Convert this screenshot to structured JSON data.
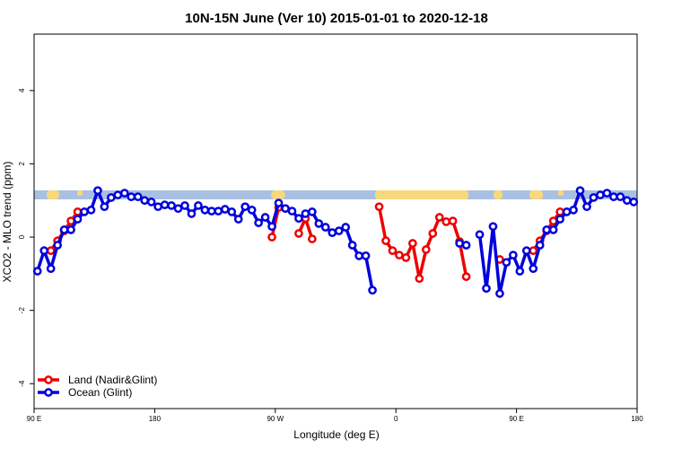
{
  "chart_data": {
    "type": "line",
    "title": "10N-15N June (Ver 10)   2015-01-01 to 2020-12-18",
    "xlabel": "Longitude (deg E)",
    "ylabel": "XCO2 - MLO trend (ppm)",
    "xlim": [
      90,
      540
    ],
    "ylim": [
      -4.68,
      5.54
    ],
    "xticks": [
      {
        "value": 90,
        "label": "90 E"
      },
      180,
      {
        "value": 270,
        "label": "90 W"
      },
      {
        "value": 360,
        "label": "0"
      },
      {
        "value": 450,
        "label": "90 E"
      },
      {
        "value": 540,
        "label": "180"
      }
    ],
    "yticks": [
      -4,
      -2,
      0,
      2,
      4
    ],
    "legend": "bottom-left",
    "x": [
      92.5,
      97.5,
      102.5,
      107.5,
      112.5,
      117.5,
      122.5,
      127.5,
      132.5,
      137.5,
      142.5,
      147.5,
      152.5,
      157.5,
      162.5,
      167.5,
      172.5,
      177.5,
      182.5,
      187.5,
      192.5,
      197.5,
      202.5,
      207.5,
      212.5,
      217.5,
      222.5,
      227.5,
      232.5,
      237.5,
      242.5,
      247.5,
      252.5,
      257.5,
      262.5,
      267.5,
      272.5,
      277.5,
      282.5,
      287.5,
      292.5,
      297.5,
      302.5,
      307.5,
      312.5,
      317.5,
      322.5,
      327.5,
      332.5,
      337.5,
      342.5,
      347.5,
      352.5,
      357.5,
      362.5,
      367.5,
      372.5,
      377.5,
      382.5,
      387.5,
      392.5,
      397.5,
      402.5,
      407.5,
      412.5,
      417.5,
      422.5,
      427.5,
      432.5,
      437.5,
      442.5,
      447.5,
      452.5,
      457.5,
      462.5,
      467.5,
      472.5,
      477.5,
      482.5,
      487.5,
      492.5,
      497.5,
      502.5,
      507.5,
      512.5,
      517.5,
      522.5,
      527.5,
      532.5,
      537.5
    ],
    "series": [
      {
        "name": "Land (Nadir&Glint)",
        "color": "#ee0000",
        "values": [
          null,
          null,
          -0.37,
          -0.1,
          0.17,
          0.44,
          0.69,
          null,
          null,
          null,
          null,
          null,
          null,
          null,
          null,
          null,
          null,
          null,
          null,
          null,
          null,
          null,
          null,
          null,
          null,
          null,
          null,
          null,
          null,
          null,
          null,
          null,
          null,
          null,
          null,
          0.0,
          0.81,
          null,
          null,
          0.1,
          0.51,
          -0.05,
          null,
          null,
          null,
          null,
          null,
          null,
          null,
          null,
          null,
          0.83,
          -0.1,
          -0.37,
          -0.49,
          -0.56,
          -0.17,
          -1.13,
          -0.34,
          0.1,
          0.54,
          0.42,
          0.44,
          -0.12,
          -1.08,
          null,
          null,
          null,
          null,
          -0.61,
          null,
          null,
          null,
          null,
          -0.37,
          -0.1,
          0.17,
          0.44,
          0.69,
          null,
          null,
          null,
          null,
          null,
          null,
          null,
          null,
          null,
          null,
          null
        ]
      },
      {
        "name": "Ocean (Glint)",
        "color": "#0000dd",
        "values": [
          -0.93,
          -0.37,
          -0.86,
          -0.22,
          0.2,
          0.2,
          0.49,
          0.69,
          0.74,
          1.27,
          0.83,
          1.08,
          1.15,
          1.2,
          1.1,
          1.1,
          1.0,
          0.96,
          0.83,
          0.88,
          0.86,
          0.78,
          0.86,
          0.64,
          0.86,
          0.74,
          0.71,
          0.71,
          0.76,
          0.69,
          0.49,
          0.83,
          0.74,
          0.39,
          0.54,
          0.29,
          0.93,
          0.78,
          0.71,
          0.51,
          0.64,
          0.69,
          0.37,
          0.27,
          0.12,
          0.17,
          0.27,
          -0.22,
          -0.51,
          -0.51,
          -1.45,
          null,
          null,
          null,
          null,
          null,
          null,
          null,
          null,
          null,
          null,
          null,
          null,
          -0.17,
          -0.22,
          null,
          0.07,
          -1.4,
          0.29,
          -1.54,
          -0.69,
          -0.49,
          -0.93,
          -0.37,
          -0.86,
          -0.22,
          0.2,
          0.2,
          0.49,
          0.69,
          0.74,
          1.27,
          0.83,
          1.08,
          1.15,
          1.2,
          1.1,
          1.1,
          1.0,
          0.96
        ]
      }
    ]
  }
}
